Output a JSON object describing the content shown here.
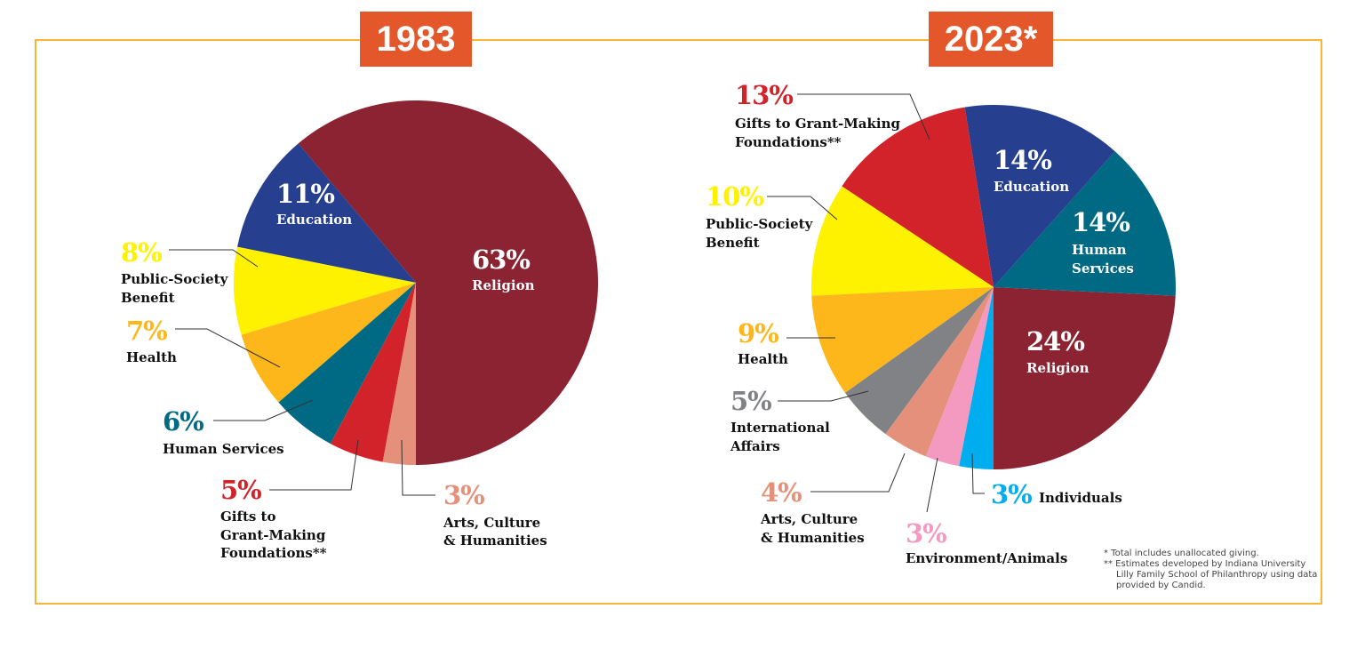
{
  "chart_data": [
    {
      "type": "pie",
      "title": "1983",
      "start": "bottom",
      "direction": "counterclockwise",
      "slices": [
        {
          "label": "Religion",
          "value": 63,
          "pct": "63%",
          "color": "#8b2332"
        },
        {
          "label": "Education",
          "value": 11,
          "pct": "11%",
          "color": "#263f8f"
        },
        {
          "label": "Public-Society Benefit",
          "value": 8,
          "pct": "8%",
          "color": "#fff200"
        },
        {
          "label": "Health",
          "value": 7,
          "pct": "7%",
          "color": "#fdb71a"
        },
        {
          "label": "Human Services",
          "value": 6,
          "pct": "6%",
          "color": "#006983"
        },
        {
          "label": "Gifts to Grant-Making Foundations**",
          "value": 5,
          "pct": "5%",
          "color": "#d2232a"
        },
        {
          "label": "Arts, Culture & Humanities",
          "value": 3,
          "pct": "3%",
          "color": "#e4907a"
        }
      ]
    },
    {
      "type": "pie",
      "title": "2023*",
      "start": "bottom",
      "direction": "counterclockwise",
      "slices": [
        {
          "label": "Religion",
          "value": 24,
          "pct": "24%",
          "color": "#8b2332"
        },
        {
          "label": "Human Services",
          "value": 14,
          "pct": "14%",
          "color": "#006983"
        },
        {
          "label": "Education",
          "value": 14,
          "pct": "14%",
          "color": "#263f8f"
        },
        {
          "label": "Gifts to Grant-Making Foundations**",
          "value": 13,
          "pct": "13%",
          "color": "#d2232a"
        },
        {
          "label": "Public-Society Benefit",
          "value": 10,
          "pct": "10%",
          "color": "#fff200"
        },
        {
          "label": "Health",
          "value": 9,
          "pct": "9%",
          "color": "#fdb71a"
        },
        {
          "label": "International Affairs",
          "value": 5,
          "pct": "5%",
          "color": "#808285"
        },
        {
          "label": "Arts, Culture & Humanities",
          "value": 4,
          "pct": "4%",
          "color": "#e4907a"
        },
        {
          "label": "Environment/Animals",
          "value": 3,
          "pct": "3%",
          "color": "#f49ac1"
        },
        {
          "label": "Individuals",
          "value": 3,
          "pct": "3%",
          "color": "#00aeef"
        }
      ]
    }
  ],
  "labels": {
    "p1983": {
      "religion": [
        "Religion"
      ],
      "education": [
        "Education"
      ],
      "public": [
        "Public-Society",
        "Benefit"
      ],
      "health": [
        "Health"
      ],
      "human": [
        "Human Services"
      ],
      "gifts": [
        "Gifts to",
        "Grant-Making",
        "Foundations**"
      ],
      "arts": [
        "Arts, Culture",
        "& Humanities"
      ]
    },
    "p2023": {
      "gifts": [
        "Gifts to Grant-Making",
        "Foundations**"
      ],
      "education": [
        "Education"
      ],
      "human": [
        "Human",
        "Services"
      ],
      "public": [
        "Public-Society",
        "Benefit"
      ],
      "health": [
        "Health"
      ],
      "religion": [
        "Religion"
      ],
      "intl": [
        "International",
        "Affairs"
      ],
      "arts": [
        "Arts, Culture",
        "& Humanities"
      ],
      "env": [
        "Environment/Animals"
      ],
      "indiv": [
        "Individuals"
      ]
    }
  },
  "footnotes": [
    "* Total includes unallocated giving.",
    "** Estimates developed by Indiana University",
    "Lilly Family School of Philanthropy using data",
    "provided by Candid."
  ],
  "colors": {
    "title_bg": "#e4572a",
    "frame": "#fbb534"
  }
}
